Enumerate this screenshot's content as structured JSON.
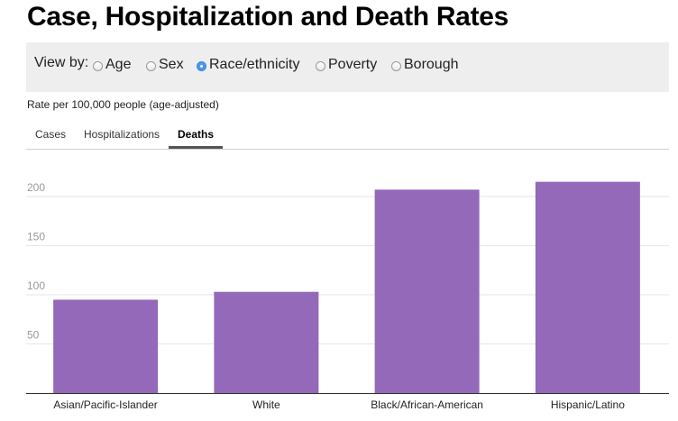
{
  "title": "Case, Hospitalization and Death Rates",
  "view_by": {
    "label": "View by:",
    "options": [
      {
        "label": "Age",
        "checked": false
      },
      {
        "label": "Sex",
        "checked": false
      },
      {
        "label": "Race/ethnicity",
        "checked": true
      },
      {
        "label": "Poverty",
        "checked": false
      },
      {
        "label": "Borough",
        "checked": false
      }
    ]
  },
  "rate_note": "Rate per 100,000 people (age-adjusted)",
  "tabs": [
    {
      "label": "Cases",
      "active": false
    },
    {
      "label": "Hospitalizations",
      "active": false
    },
    {
      "label": "Deaths",
      "active": true
    }
  ],
  "colors": {
    "bar": "#9469b9",
    "accent": "#4a96f0"
  },
  "chart_data": {
    "type": "bar",
    "categories": [
      "Asian/Pacific-Islander",
      "White",
      "Black/African-American",
      "Hispanic/Latino"
    ],
    "values": [
      95,
      103,
      207,
      215
    ],
    "ylim": [
      0,
      235
    ],
    "yticks": [
      50,
      100,
      150,
      200
    ],
    "grid": true,
    "xlabel": "",
    "ylabel": ""
  }
}
